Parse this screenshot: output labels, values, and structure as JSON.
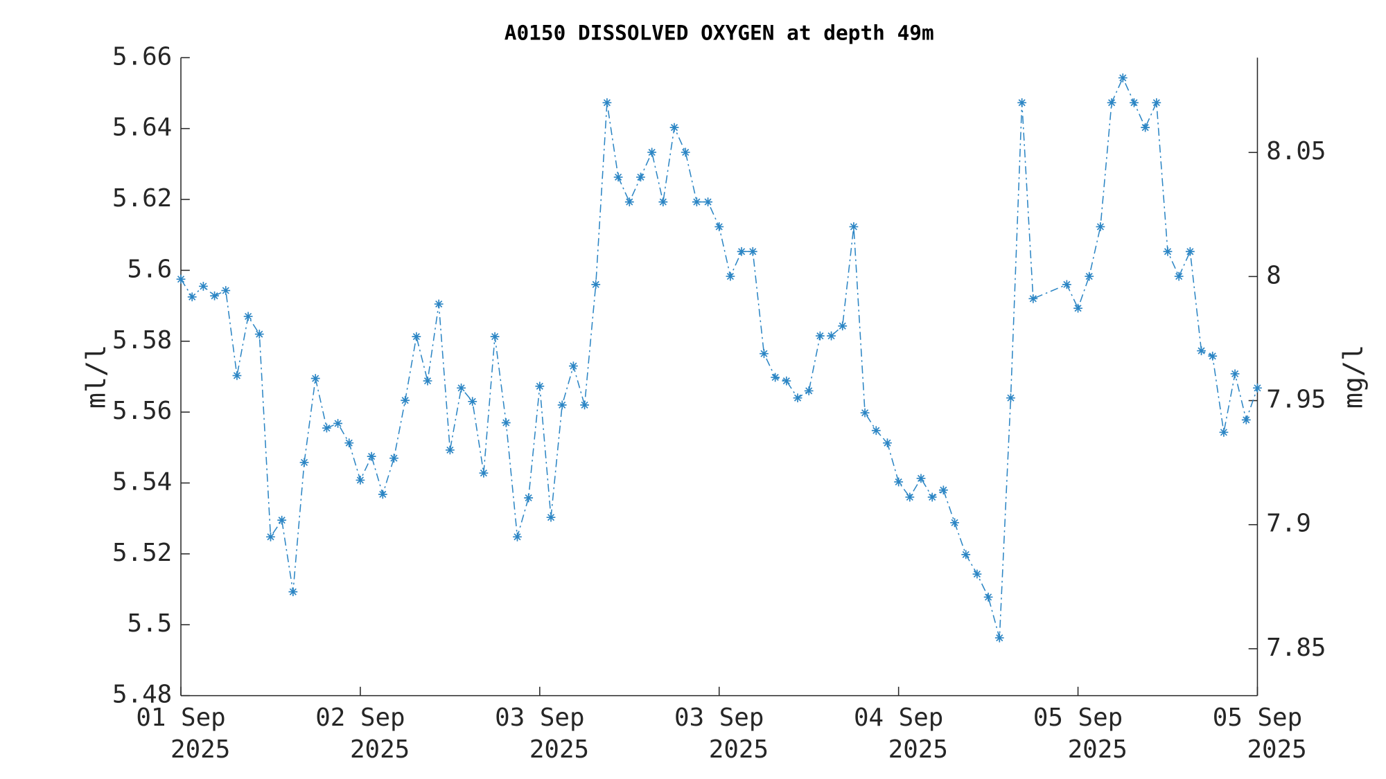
{
  "chart_data": {
    "type": "line",
    "title": "A0150 DISSOLVED OXYGEN at depth 49m",
    "y_label": "ml/l",
    "y2_label": "mg/l",
    "x": [
      0,
      1,
      2,
      3,
      4,
      5,
      6,
      7,
      8,
      9,
      10,
      11,
      12,
      13,
      14,
      15,
      16,
      17,
      18,
      19,
      20,
      21,
      22,
      23,
      24,
      25,
      26,
      27,
      28,
      29,
      30,
      31,
      32,
      33,
      34,
      35,
      36,
      37,
      38,
      39,
      40,
      41,
      42,
      43,
      44,
      45,
      46,
      47,
      48,
      49,
      50,
      51,
      52,
      53,
      54,
      55,
      56,
      57,
      58,
      59,
      60,
      61,
      62,
      63,
      64,
      65,
      66,
      67,
      68,
      69,
      70,
      71,
      72,
      73,
      74,
      75,
      76,
      79,
      80,
      81,
      82,
      83,
      84,
      85,
      86,
      87,
      88,
      89,
      90,
      91,
      92,
      93,
      94,
      95,
      96
    ],
    "series": [
      {
        "name": "ml/l",
        "color": "#2b85c4",
        "values": [
          5.5975,
          5.5925,
          5.5955,
          5.5928,
          5.5943,
          5.5703,
          5.587,
          5.582,
          5.5248,
          5.5295,
          5.5093,
          5.5458,
          5.5695,
          5.5555,
          5.5568,
          5.5513,
          5.5408,
          5.5475,
          5.5368,
          5.547,
          5.5633,
          5.5813,
          5.5688,
          5.5905,
          5.5493,
          5.5668,
          5.563,
          5.5428,
          5.5813,
          5.557,
          5.5248,
          5.5358,
          5.5673,
          5.5303,
          5.562,
          5.573,
          5.562,
          5.596,
          5.6473,
          5.6263,
          5.6193,
          5.6263,
          5.6333,
          5.6193,
          5.6403,
          5.6333,
          5.6193,
          5.6193,
          5.6123,
          5.5983,
          5.6053,
          5.6053,
          5.5765,
          5.5698,
          5.5688,
          5.564,
          5.566,
          5.5815,
          5.5815,
          5.5843,
          5.6123,
          5.5598,
          5.5548,
          5.5513,
          5.5403,
          5.536,
          5.5413,
          5.536,
          5.538,
          5.5288,
          5.5198,
          5.5143,
          5.5078,
          5.4963,
          5.564,
          5.6473,
          5.592,
          5.596,
          5.5893,
          5.5983,
          5.6123,
          5.6473,
          5.6543,
          5.6473,
          5.6403,
          5.6473,
          5.6053,
          5.5983,
          5.6053,
          5.5773,
          5.5758,
          5.5543,
          5.5708,
          5.5578,
          5.5668
        ]
      }
    ],
    "xlim": [
      0,
      96
    ],
    "xticks": [
      {
        "value": 0,
        "label": [
          "01 Sep",
          "2025"
        ]
      },
      {
        "value": 16,
        "label": [
          "02 Sep",
          "2025"
        ]
      },
      {
        "value": 32,
        "label": [
          "03 Sep",
          "2025"
        ]
      },
      {
        "value": 48,
        "label": [
          "03 Sep",
          "2025"
        ]
      },
      {
        "value": 64,
        "label": [
          "04 Sep",
          "2025"
        ]
      },
      {
        "value": 80,
        "label": [
          "05 Sep",
          "2025"
        ]
      },
      {
        "value": 96,
        "label": [
          "05 Sep",
          "2025"
        ]
      }
    ],
    "ylim": [
      5.48,
      5.66
    ],
    "yticks": [
      5.48,
      5.5,
      5.52,
      5.54,
      5.56,
      5.58,
      5.6,
      5.62,
      5.64,
      5.66
    ],
    "y2lim": [
      7.8311,
      8.0882
    ],
    "y2ticks": [
      7.85,
      7.9,
      7.95,
      8,
      8.05
    ]
  }
}
